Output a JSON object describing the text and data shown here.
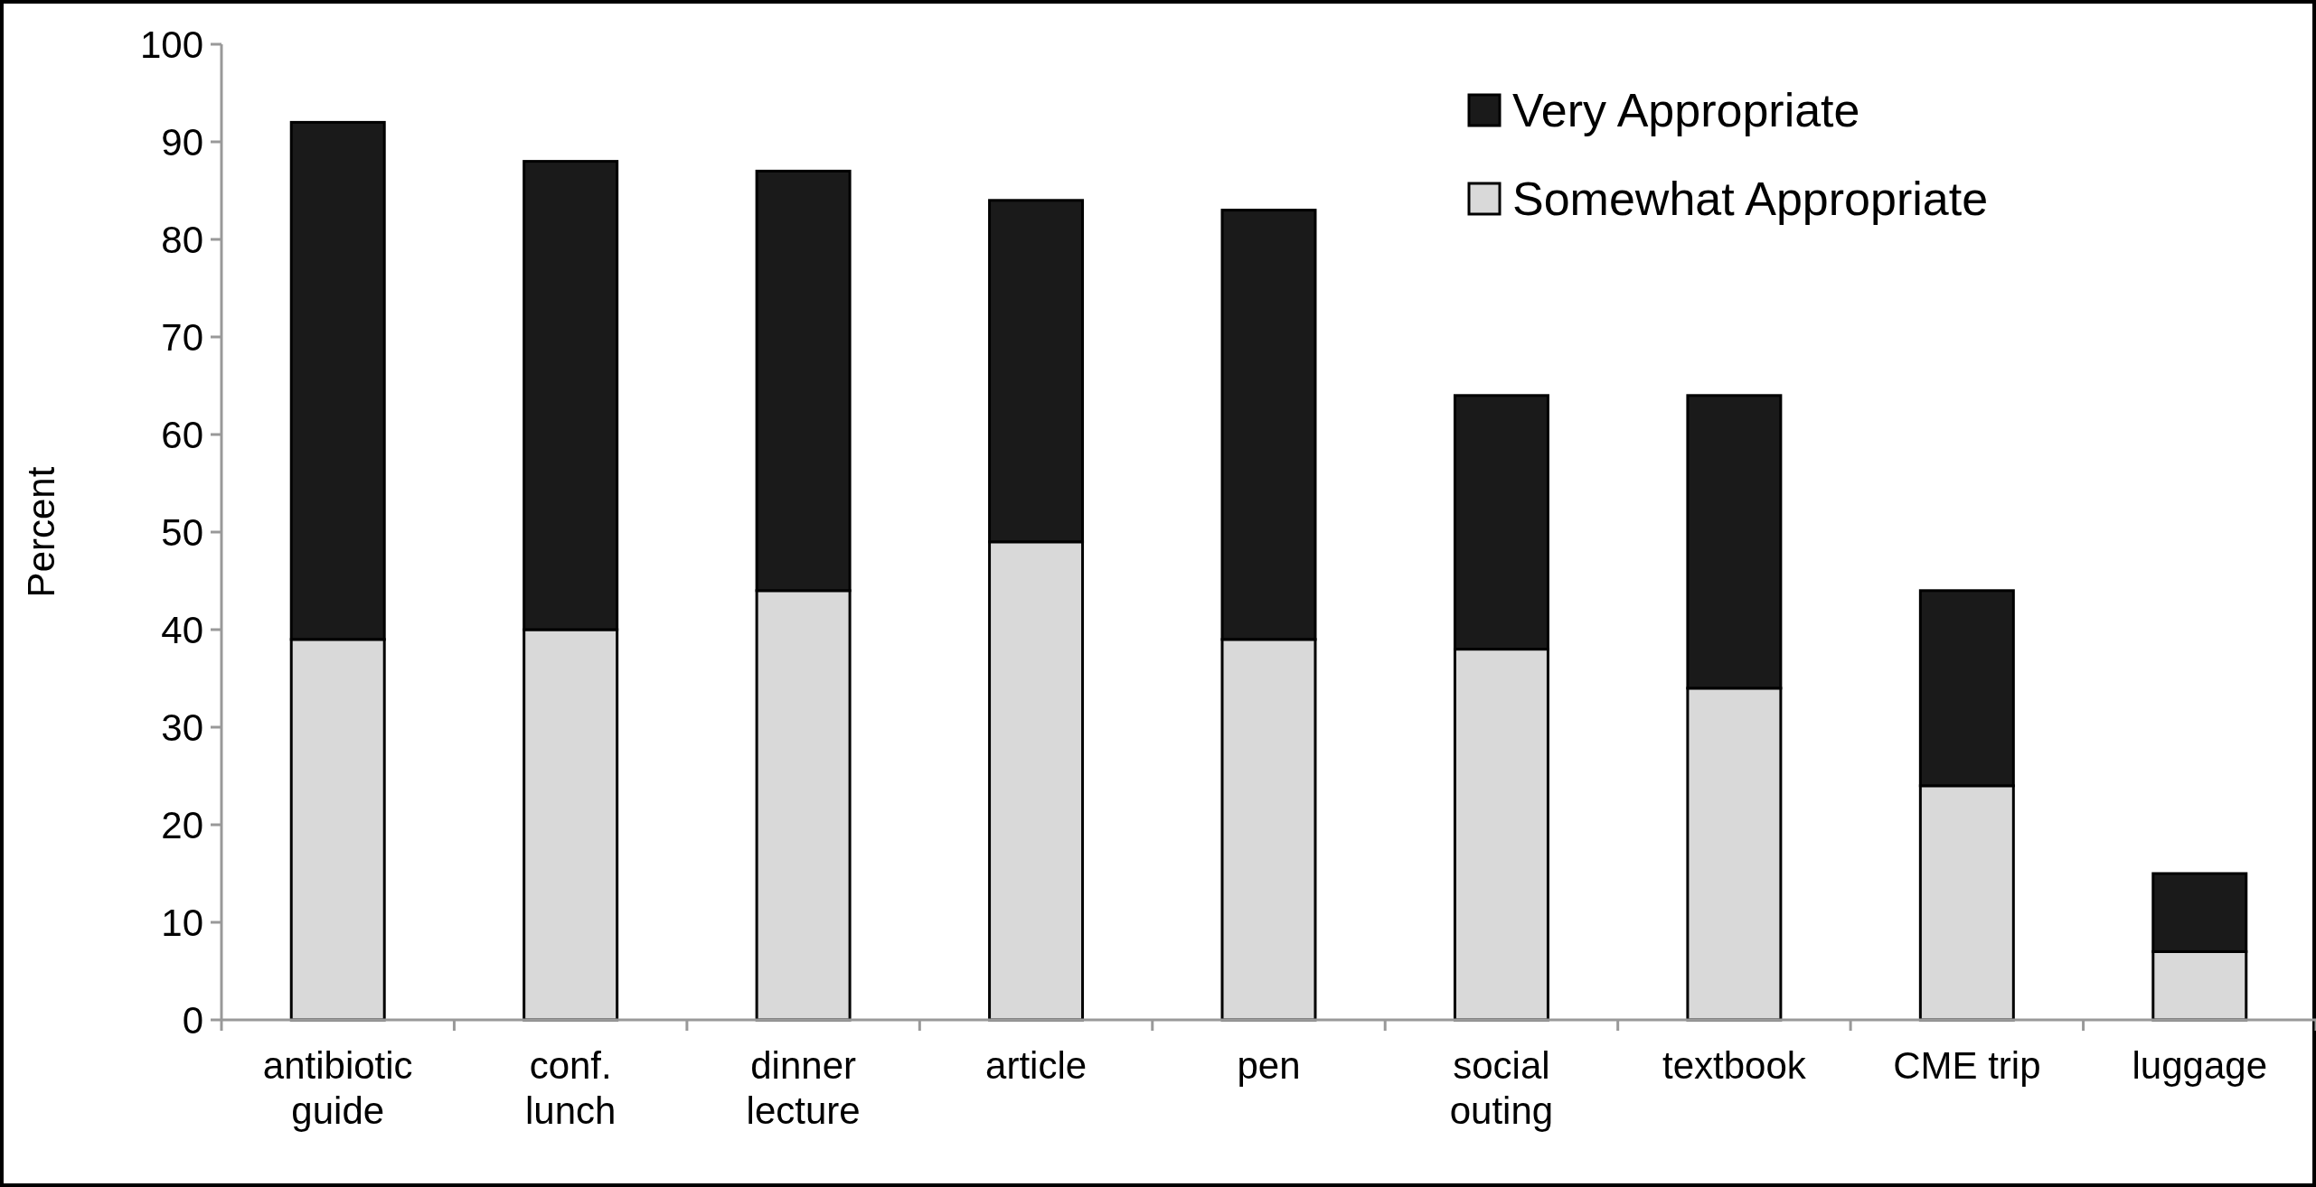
{
  "chart_data": {
    "type": "bar",
    "stacked": true,
    "ylabel": "Percent",
    "categories": [
      "antibiotic guide",
      "conf. lunch",
      "dinner lecture",
      "article",
      "pen",
      "social outing",
      "textbook",
      "CME trip",
      "luggage"
    ],
    "series": [
      {
        "name": "Somewhat Appropriate",
        "color": "#d9d9d9",
        "values": [
          39,
          40,
          44,
          49,
          39,
          38,
          34,
          24,
          7
        ]
      },
      {
        "name": "Very Appropriate",
        "color": "#1a1a1a",
        "values": [
          53,
          48,
          43,
          35,
          44,
          26,
          30,
          20,
          8
        ]
      }
    ],
    "ylim": [
      0,
      100
    ],
    "yticks": [
      0,
      10,
      20,
      30,
      40,
      50,
      60,
      70,
      80,
      90,
      100
    ],
    "legend": "top right",
    "grid": false
  }
}
